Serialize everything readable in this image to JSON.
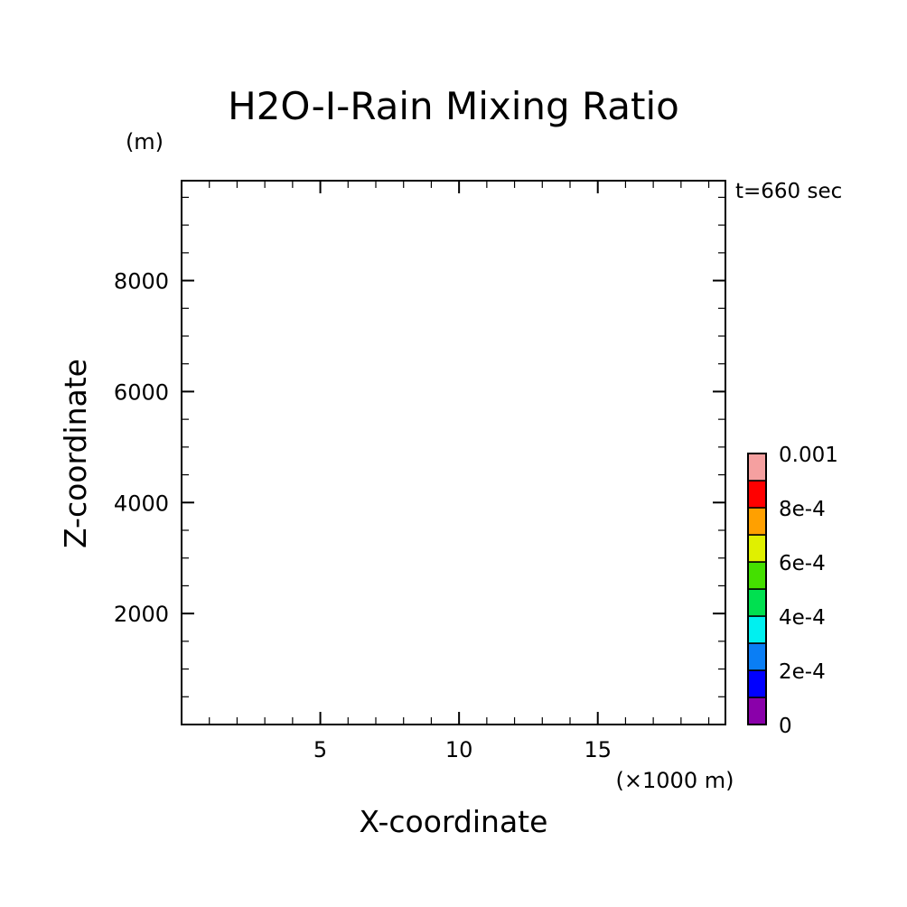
{
  "chart_data": {
    "type": "heatmap",
    "title": "H2O-I-Rain Mixing Ratio",
    "xlabel": "X-coordinate",
    "ylabel": "Z-coordinate",
    "x_unit": "(×1000 m)",
    "y_unit": "(m)",
    "time_label": "t=660 sec",
    "xlim": [
      0,
      19.6
    ],
    "ylim": [
      0,
      9800
    ],
    "x_major_ticks": [
      5,
      10,
      15
    ],
    "x_tick_labels": [
      "5",
      "10",
      "15"
    ],
    "x_minor_step": 1,
    "y_major_ticks": [
      2000,
      4000,
      6000,
      8000
    ],
    "y_tick_labels": [
      "2000",
      "4000",
      "6000",
      "8000"
    ],
    "y_minor_step": 500,
    "grid": false,
    "values": [],
    "colorbar": {
      "min": 0,
      "max": 0.001,
      "levels": [
        0,
        0.0001,
        0.0002,
        0.0003,
        0.0004,
        0.0005,
        0.0006,
        0.0007,
        0.0008,
        0.0009,
        0.001
      ],
      "colors": [
        "#8a00aa",
        "#0000ff",
        "#0a7ef5",
        "#00f0f0",
        "#00e050",
        "#44e000",
        "#e0f000",
        "#ffa000",
        "#ff0000",
        "#f5a0a0"
      ],
      "tick_values": [
        0,
        0.0002,
        0.0004,
        0.0006,
        0.0008,
        0.001
      ],
      "tick_labels": [
        "0",
        "2e-4",
        "4e-4",
        "6e-4",
        "8e-4",
        "0.001"
      ]
    }
  }
}
